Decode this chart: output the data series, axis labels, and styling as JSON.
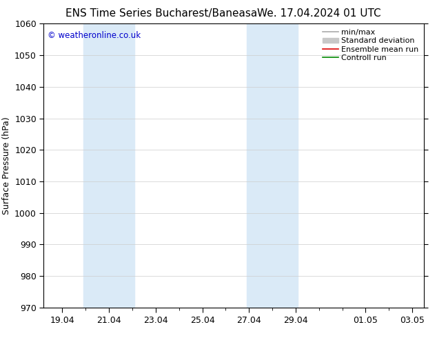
{
  "title_left": "ENS Time Series Bucharest/Baneasa",
  "title_right": "We. 17.04.2024 01 UTC",
  "ylabel": "Surface Pressure (hPa)",
  "ylim": [
    970,
    1060
  ],
  "yticks": [
    970,
    980,
    990,
    1000,
    1010,
    1020,
    1030,
    1040,
    1050,
    1060
  ],
  "xlim": [
    18.5,
    3.5
  ],
  "x_start_date": "2024-04-18",
  "x_end_date": "2024-05-04",
  "xtick_labels": [
    "19.04",
    "21.04",
    "23.04",
    "25.04",
    "27.04",
    "29.04",
    "01.05",
    "03.05"
  ],
  "shaded_bands": [
    {
      "xmin": 19.9,
      "xmax": 22.1
    },
    {
      "xmin": 26.9,
      "xmax": 29.1
    }
  ],
  "shade_color": "#daeaf7",
  "shade_alpha": 1.0,
  "background_color": "#ffffff",
  "plot_bg_color": "#ffffff",
  "grid_color": "#cccccc",
  "copyright_text": "© weatheronline.co.uk",
  "copyright_color": "#0000cc",
  "legend_items": [
    {
      "label": "min/max",
      "color": "#aaaaaa",
      "lw": 1.2
    },
    {
      "label": "Standard deviation",
      "color": "#c8c8c8",
      "lw": 7
    },
    {
      "label": "Ensemble mean run",
      "color": "#dd0000",
      "lw": 1.2
    },
    {
      "label": "Controll run",
      "color": "#008800",
      "lw": 1.2
    }
  ],
  "title_fontsize": 11,
  "tick_fontsize": 9,
  "ylabel_fontsize": 9,
  "legend_fontsize": 8
}
